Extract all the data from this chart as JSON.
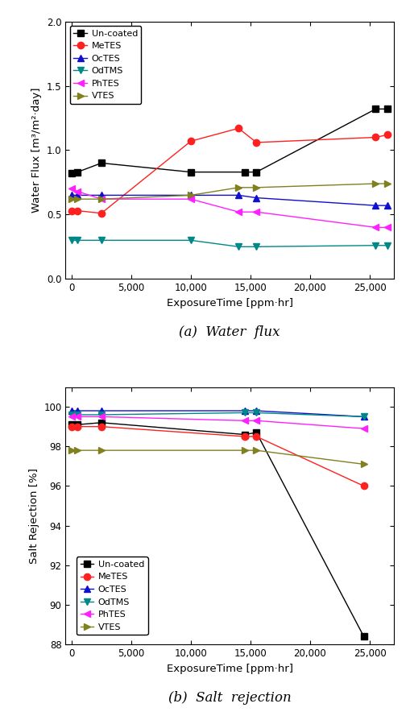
{
  "flux": {
    "x_uncoated": [
      0,
      500,
      2500,
      10000,
      14500,
      15500,
      25500,
      26500
    ],
    "y_uncoated": [
      0.82,
      0.83,
      0.9,
      0.83,
      0.83,
      0.83,
      1.32,
      1.32
    ],
    "x_metes": [
      0,
      500,
      2500,
      10000,
      14000,
      15500,
      25500,
      26500
    ],
    "y_metes": [
      0.53,
      0.53,
      0.51,
      1.07,
      1.17,
      1.06,
      1.1,
      1.12
    ],
    "x_octes": [
      0,
      500,
      2500,
      10000,
      14000,
      15500,
      25500,
      26500
    ],
    "y_octes": [
      0.65,
      0.65,
      0.65,
      0.65,
      0.65,
      0.63,
      0.57,
      0.57
    ],
    "x_odtms": [
      0,
      500,
      2500,
      10000,
      14000,
      15500,
      25500,
      26500
    ],
    "y_odtms": [
      0.3,
      0.3,
      0.3,
      0.3,
      0.25,
      0.25,
      0.26,
      0.26
    ],
    "x_phtes": [
      0,
      500,
      2500,
      10000,
      14000,
      15500,
      25500,
      26500
    ],
    "y_phtes": [
      0.7,
      0.68,
      0.62,
      0.62,
      0.52,
      0.52,
      0.4,
      0.4
    ],
    "x_vtes": [
      0,
      500,
      2500,
      10000,
      14000,
      15500,
      25500,
      26500
    ],
    "y_vtes": [
      0.62,
      0.62,
      0.62,
      0.65,
      0.71,
      0.71,
      0.74,
      0.74
    ],
    "xlabel": "ExposureTime [ppm·hr]",
    "ylabel": "Water Flux [m³/m²·day]",
    "caption": "(a)  Water  flux",
    "ylim": [
      0.0,
      2.0
    ],
    "xlim": [
      -500,
      27000
    ],
    "yticks": [
      0.0,
      0.5,
      1.0,
      1.5,
      2.0
    ],
    "xticks": [
      0,
      5000,
      10000,
      15000,
      20000,
      25000
    ]
  },
  "salt": {
    "x_uncoated": [
      0,
      500,
      2500,
      14500,
      15500,
      24500
    ],
    "y_uncoated": [
      99.1,
      99.1,
      99.2,
      98.6,
      98.7,
      88.4
    ],
    "x_metes": [
      0,
      500,
      2500,
      14500,
      15500,
      24500
    ],
    "y_metes": [
      99.0,
      99.0,
      99.0,
      98.5,
      98.5,
      96.0
    ],
    "x_octes": [
      0,
      500,
      2500,
      14500,
      15500,
      24500
    ],
    "y_octes": [
      99.8,
      99.8,
      99.8,
      99.8,
      99.8,
      99.5
    ],
    "x_odtms": [
      0,
      500,
      2500,
      14500,
      15500,
      24500
    ],
    "y_odtms": [
      99.6,
      99.6,
      99.6,
      99.7,
      99.7,
      99.5
    ],
    "x_phtes": [
      0,
      500,
      2500,
      14500,
      15500,
      24500
    ],
    "y_phtes": [
      99.5,
      99.5,
      99.5,
      99.3,
      99.3,
      98.9
    ],
    "x_vtes": [
      0,
      500,
      2500,
      14500,
      15500,
      24500
    ],
    "y_vtes": [
      97.8,
      97.8,
      97.8,
      97.8,
      97.8,
      97.1
    ],
    "xlabel": "ExposureTime [ppm·hr]",
    "ylabel": "Salt Rejection [%]",
    "caption": "(b)  Salt  rejection",
    "ylim": [
      88,
      101
    ],
    "xlim": [
      -500,
      27000
    ],
    "yticks": [
      88,
      90,
      92,
      94,
      96,
      98,
      100
    ],
    "xticks": [
      0,
      5000,
      10000,
      15000,
      20000,
      25000
    ]
  },
  "colors": {
    "uncoated": "#000000",
    "metes": "#ff2020",
    "octes": "#1010cc",
    "odtms": "#008888",
    "phtes": "#ff20ff",
    "vtes": "#808020"
  },
  "markers": {
    "uncoated": "s",
    "metes": "o",
    "octes": "^",
    "odtms": "v",
    "phtes": "<",
    "vtes": ">"
  },
  "labels": {
    "uncoated": "Un-coated",
    "metes": "MeTES",
    "octes": "OcTES",
    "odtms": "OdTMS",
    "phtes": "PhTES",
    "vtes": "VTES"
  },
  "figsize": [
    5.09,
    8.89
  ],
  "dpi": 100
}
